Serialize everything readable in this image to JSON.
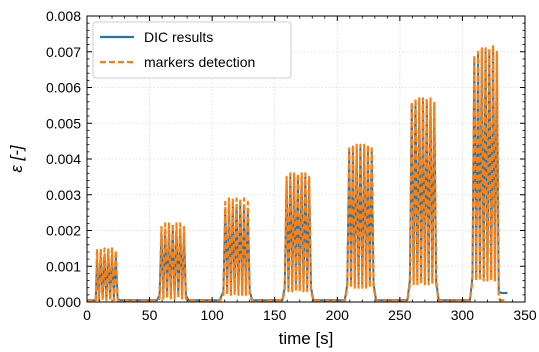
{
  "chart_data": {
    "type": "line",
    "title": "",
    "xlabel": "time [s]",
    "ylabel": "ε [-]",
    "xlim": [
      0,
      350
    ],
    "ylim": [
      0,
      0.008
    ],
    "xticks": [
      0,
      50,
      100,
      150,
      200,
      250,
      300,
      350
    ],
    "yticks": [
      0.0,
      0.001,
      0.002,
      0.003,
      0.004,
      0.005,
      0.006,
      0.007,
      0.008
    ],
    "xtick_labels": [
      "0",
      "50",
      "100",
      "150",
      "200",
      "250",
      "300",
      "350"
    ],
    "ytick_labels": [
      "0.000",
      "0.001",
      "0.002",
      "0.003",
      "0.004",
      "0.005",
      "0.006",
      "0.007",
      "0.008"
    ],
    "grid": true,
    "legend_position": "top-left",
    "series": [
      {
        "name": "DIC results",
        "color": "#1f77b4",
        "style": "solid",
        "points": [
          [
            0,
            5e-05
          ],
          [
            7,
            5e-05
          ],
          [
            8,
            0.0012
          ],
          [
            9.5,
            0.0001
          ],
          [
            11,
            0.00125
          ],
          [
            12.5,
            0.0001
          ],
          [
            14,
            0.0013
          ],
          [
            15.5,
            0.0001
          ],
          [
            17,
            0.0013
          ],
          [
            18.5,
            0.0001
          ],
          [
            20,
            0.0013
          ],
          [
            21.5,
            0.0001
          ],
          [
            23,
            0.00125
          ],
          [
            24.5,
            0.0001
          ],
          [
            26,
            5e-05
          ],
          [
            56,
            5e-05
          ],
          [
            58,
            0.0002
          ],
          [
            59.5,
            0.0019
          ],
          [
            61,
            0.0002
          ],
          [
            62.5,
            0.002
          ],
          [
            64,
            0.0002
          ],
          [
            65.5,
            0.002
          ],
          [
            67,
            0.0002
          ],
          [
            68.5,
            0.002
          ],
          [
            70,
            0.0002
          ],
          [
            71.5,
            0.002
          ],
          [
            73,
            0.0002
          ],
          [
            74.5,
            0.002
          ],
          [
            76,
            0.0002
          ],
          [
            77.5,
            0.0019
          ],
          [
            79,
            0.0002
          ],
          [
            81,
            5e-05
          ],
          [
            106,
            5e-05
          ],
          [
            109,
            0.0003
          ],
          [
            110.5,
            0.0026
          ],
          [
            112,
            0.0003
          ],
          [
            113.5,
            0.0027
          ],
          [
            115,
            0.0003
          ],
          [
            116.5,
            0.0027
          ],
          [
            118,
            0.0003
          ],
          [
            119.5,
            0.0027
          ],
          [
            121,
            0.0003
          ],
          [
            122.5,
            0.0027
          ],
          [
            124,
            0.0003
          ],
          [
            125.5,
            0.0027
          ],
          [
            127,
            0.0003
          ],
          [
            128.5,
            0.0026
          ],
          [
            130,
            0.0003
          ],
          [
            132,
            5e-05
          ],
          [
            156,
            5e-05
          ],
          [
            158,
            0.0004
          ],
          [
            159.5,
            0.0034
          ],
          [
            161,
            0.0004
          ],
          [
            162.5,
            0.0035
          ],
          [
            164,
            0.0004
          ],
          [
            165.5,
            0.0035
          ],
          [
            167,
            0.0004
          ],
          [
            168.5,
            0.0035
          ],
          [
            170,
            0.0004
          ],
          [
            171.5,
            0.0035
          ],
          [
            173,
            0.0004
          ],
          [
            174.5,
            0.0035
          ],
          [
            176,
            0.0004
          ],
          [
            177.5,
            0.0034
          ],
          [
            179,
            0.0004
          ],
          [
            181,
            5e-05
          ],
          [
            206,
            5e-05
          ],
          [
            208,
            0.0005
          ],
          [
            209.5,
            0.0042
          ],
          [
            211,
            0.0005
          ],
          [
            212.5,
            0.0043
          ],
          [
            214,
            0.0005
          ],
          [
            215.5,
            0.0043
          ],
          [
            217,
            0.0005
          ],
          [
            218.5,
            0.0043
          ],
          [
            220,
            0.0005
          ],
          [
            221.5,
            0.0043
          ],
          [
            223,
            0.0005
          ],
          [
            224.5,
            0.0043
          ],
          [
            226,
            0.0005
          ],
          [
            227.5,
            0.0042
          ],
          [
            229,
            0.0005
          ],
          [
            231,
            5e-05
          ],
          [
            256,
            5e-05
          ],
          [
            258,
            0.0006
          ],
          [
            259.5,
            0.0055
          ],
          [
            261,
            0.0006
          ],
          [
            262.5,
            0.0056
          ],
          [
            264,
            0.0006
          ],
          [
            265.5,
            0.0056
          ],
          [
            267,
            0.0006
          ],
          [
            268.5,
            0.0056
          ],
          [
            270,
            0.0006
          ],
          [
            271.5,
            0.0056
          ],
          [
            273,
            0.0006
          ],
          [
            274.5,
            0.0056
          ],
          [
            276,
            0.0006
          ],
          [
            277.5,
            0.0055
          ],
          [
            279,
            0.0006
          ],
          [
            281,
            5e-05
          ],
          [
            306,
            5e-05
          ],
          [
            308,
            0.0007
          ],
          [
            309.5,
            0.0068
          ],
          [
            311,
            0.0007
          ],
          [
            312.5,
            0.0069
          ],
          [
            314,
            0.0007
          ],
          [
            315.5,
            0.007
          ],
          [
            317,
            0.0007
          ],
          [
            318.5,
            0.007
          ],
          [
            320,
            0.0007
          ],
          [
            321.5,
            0.007
          ],
          [
            323,
            0.0007
          ],
          [
            324.5,
            0.007
          ],
          [
            326,
            0.0007
          ],
          [
            327.5,
            0.0069
          ],
          [
            329,
            0.0003
          ],
          [
            331,
            0.00025
          ],
          [
            336,
            0.00025
          ]
        ]
      },
      {
        "name": "markers detection",
        "color": "#ff7f0e",
        "style": "dashed",
        "points": [
          [
            0,
            3e-05
          ],
          [
            7,
            3e-05
          ],
          [
            8,
            0.00145
          ],
          [
            9.5,
            5e-05
          ],
          [
            11,
            0.0015
          ],
          [
            12.5,
            5e-05
          ],
          [
            14,
            0.0015
          ],
          [
            15.5,
            5e-05
          ],
          [
            17,
            0.0015
          ],
          [
            18.5,
            5e-05
          ],
          [
            20,
            0.0015
          ],
          [
            21.5,
            5e-05
          ],
          [
            23,
            0.00145
          ],
          [
            24.5,
            5e-05
          ],
          [
            26,
            3e-05
          ],
          [
            56,
            3e-05
          ],
          [
            58,
            0.0001
          ],
          [
            59.5,
            0.0021
          ],
          [
            61,
            0.0001
          ],
          [
            62.5,
            0.0022
          ],
          [
            64,
            0.0001
          ],
          [
            65.5,
            0.0022
          ],
          [
            67,
            0.0001
          ],
          [
            68.5,
            0.0022
          ],
          [
            70,
            0.0001
          ],
          [
            71.5,
            0.0022
          ],
          [
            73,
            0.0001
          ],
          [
            74.5,
            0.0022
          ],
          [
            76,
            0.0001
          ],
          [
            77.5,
            0.0021
          ],
          [
            79,
            0.0001
          ],
          [
            81,
            3e-05
          ],
          [
            106,
            3e-05
          ],
          [
            109,
            0.0002
          ],
          [
            110.5,
            0.0028
          ],
          [
            112,
            0.0002
          ],
          [
            113.5,
            0.0029
          ],
          [
            115,
            0.0002
          ],
          [
            116.5,
            0.0029
          ],
          [
            118,
            0.0002
          ],
          [
            119.5,
            0.0029
          ],
          [
            121,
            0.0002
          ],
          [
            122.5,
            0.0029
          ],
          [
            124,
            0.0002
          ],
          [
            125.5,
            0.0029
          ],
          [
            127,
            0.0002
          ],
          [
            128.5,
            0.0028
          ],
          [
            130,
            0.0002
          ],
          [
            132,
            3e-05
          ],
          [
            156,
            3e-05
          ],
          [
            158,
            0.0003
          ],
          [
            159.5,
            0.0035
          ],
          [
            161,
            0.0003
          ],
          [
            162.5,
            0.0036
          ],
          [
            164,
            0.0003
          ],
          [
            165.5,
            0.0036
          ],
          [
            167,
            0.0003
          ],
          [
            168.5,
            0.0036
          ],
          [
            170,
            0.0003
          ],
          [
            171.5,
            0.0036
          ],
          [
            173,
            0.0003
          ],
          [
            174.5,
            0.0036
          ],
          [
            176,
            0.0003
          ],
          [
            177.5,
            0.0035
          ],
          [
            179,
            0.0003
          ],
          [
            181,
            3e-05
          ],
          [
            206,
            3e-05
          ],
          [
            208,
            0.0004
          ],
          [
            209.5,
            0.0043
          ],
          [
            211,
            0.0004
          ],
          [
            212.5,
            0.0044
          ],
          [
            214,
            0.0004
          ],
          [
            215.5,
            0.0044
          ],
          [
            217,
            0.0004
          ],
          [
            218.5,
            0.0044
          ],
          [
            220,
            0.0004
          ],
          [
            221.5,
            0.0044
          ],
          [
            223,
            0.0004
          ],
          [
            224.5,
            0.0044
          ],
          [
            226,
            0.0004
          ],
          [
            227.5,
            0.0043
          ],
          [
            229,
            0.0004
          ],
          [
            231,
            3e-05
          ],
          [
            256,
            3e-05
          ],
          [
            258,
            0.0005
          ],
          [
            259.5,
            0.0056
          ],
          [
            261,
            0.0005
          ],
          [
            262.5,
            0.0057
          ],
          [
            264,
            0.0005
          ],
          [
            265.5,
            0.0057
          ],
          [
            267,
            0.0005
          ],
          [
            268.5,
            0.0057
          ],
          [
            270,
            0.0005
          ],
          [
            271.5,
            0.0057
          ],
          [
            273,
            0.0005
          ],
          [
            274.5,
            0.0057
          ],
          [
            276,
            0.0005
          ],
          [
            277.5,
            0.0056
          ],
          [
            279,
            0.0005
          ],
          [
            281,
            3e-05
          ],
          [
            306,
            3e-05
          ],
          [
            308,
            0.0006
          ],
          [
            309.5,
            0.0069
          ],
          [
            311,
            0.0006
          ],
          [
            312.5,
            0.007
          ],
          [
            314,
            0.0006
          ],
          [
            315.5,
            0.0071
          ],
          [
            317,
            0.0006
          ],
          [
            318.5,
            0.0071
          ],
          [
            320,
            0.0006
          ],
          [
            321.5,
            0.0071
          ],
          [
            323,
            0.0006
          ],
          [
            324.5,
            0.0072
          ],
          [
            326,
            0.0006
          ],
          [
            327.5,
            0.007
          ],
          [
            329,
            0.0001
          ],
          [
            331,
            5e-05
          ],
          [
            336,
            5e-05
          ]
        ]
      }
    ]
  }
}
